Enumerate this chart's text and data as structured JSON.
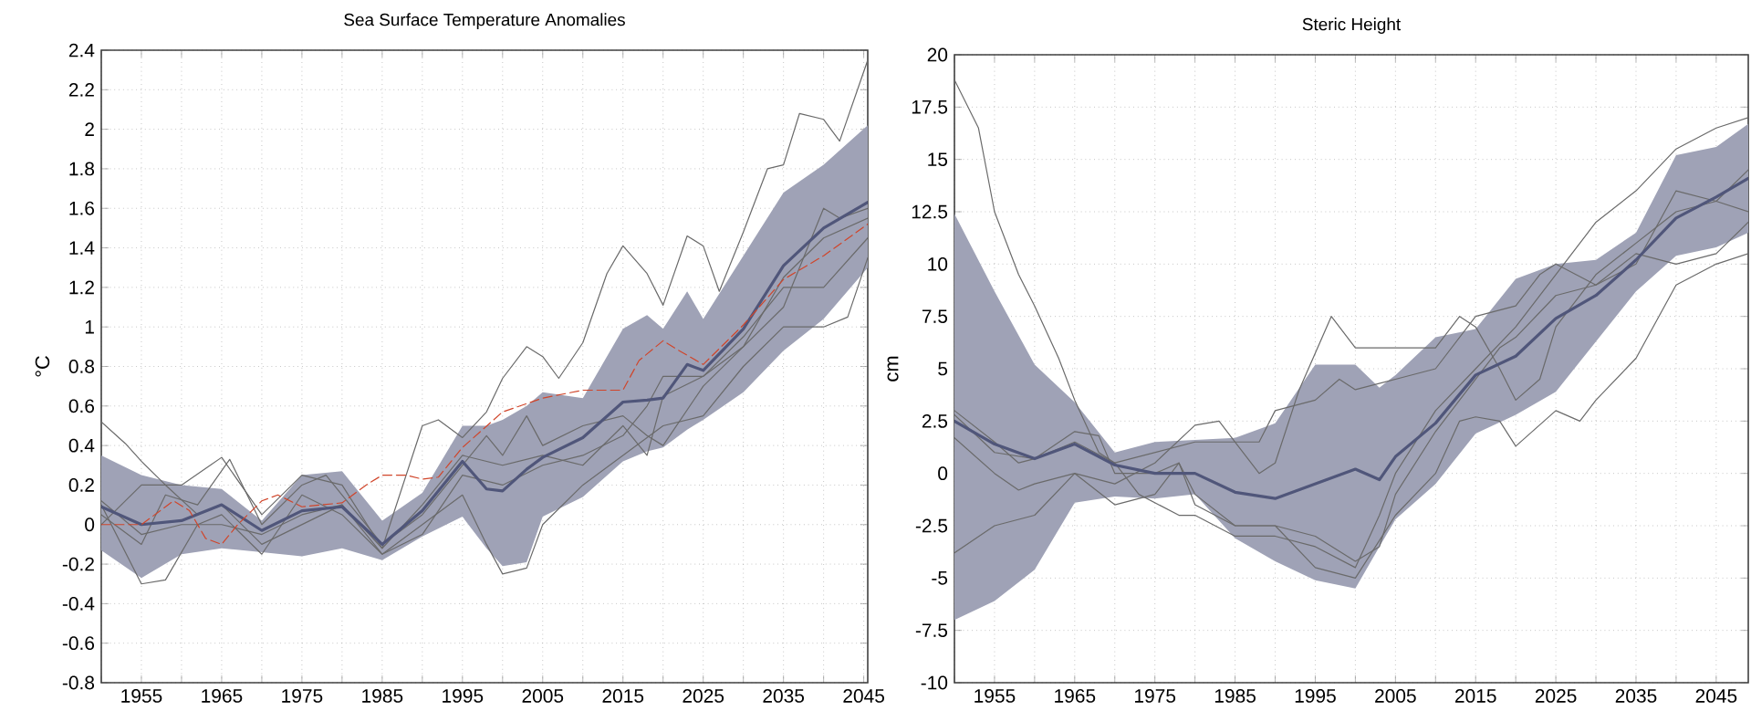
{
  "chart_data": [
    {
      "type": "line",
      "title": "Sea Surface Temperature Anomalies",
      "ylabel": "°C",
      "xlim": [
        1950,
        2045.5
      ],
      "ylim": [
        -0.8,
        2.4
      ],
      "xticks": [
        {
          "value": 1950,
          "label": null
        },
        1955,
        {
          "value": 1960,
          "label": null
        },
        1965,
        {
          "value": 1970,
          "label": null
        },
        1975,
        {
          "value": 1980,
          "label": null
        },
        1985,
        {
          "value": 1990,
          "label": null
        },
        1995,
        {
          "value": 2000,
          "label": null
        },
        2005,
        {
          "value": 2010,
          "label": null
        },
        2015,
        {
          "value": 2020,
          "label": null
        },
        2025,
        {
          "value": 2030,
          "label": null
        },
        2035,
        {
          "value": 2040,
          "label": null
        },
        2045
      ],
      "yticks": [
        -0.8,
        -0.6,
        -0.4,
        -0.2,
        0,
        0.2,
        0.4,
        0.6,
        0.8,
        1,
        1.2,
        1.4,
        1.6,
        1.8,
        2,
        2.2,
        2.4
      ],
      "grid": true,
      "series": [
        {
          "color": "#6a6a6a",
          "x": [
            1950,
            1953,
            1955,
            1958,
            1960,
            1965,
            1970,
            1975,
            1980,
            1985,
            1990,
            1992,
            1995,
            1998,
            2000,
            2003,
            2005,
            2007,
            2010,
            2013,
            2015,
            2018,
            2020,
            2023,
            2025,
            2027,
            2030,
            2033,
            2035,
            2037,
            2040,
            2042,
            2045.5
          ],
          "values": [
            0.52,
            0.41,
            0.32,
            0.2,
            0.2,
            0.34,
            0.05,
            0.25,
            0.2,
            -0.12,
            0.5,
            0.53,
            0.44,
            0.57,
            0.74,
            0.9,
            0.85,
            0.74,
            0.92,
            1.27,
            1.41,
            1.27,
            1.11,
            1.46,
            1.41,
            1.18,
            1.48,
            1.8,
            1.82,
            2.08,
            2.05,
            1.94,
            2.35
          ]
        },
        {
          "color": "#6a6a6a",
          "x": [
            1950,
            1955,
            1958,
            1962,
            1965,
            1970,
            1975,
            1980,
            1985,
            1990,
            1995,
            1998,
            2000,
            2003,
            2005,
            2010,
            2015,
            2020,
            2025,
            2030,
            2035,
            2040,
            2043,
            2045.5
          ],
          "values": [
            0.1,
            -0.3,
            -0.28,
            0.0,
            0.05,
            -0.15,
            0.15,
            0.05,
            -0.15,
            0.0,
            0.15,
            -0.1,
            -0.25,
            -0.22,
            0.0,
            0.2,
            0.35,
            0.5,
            0.55,
            0.8,
            1.0,
            1.0,
            1.05,
            1.35
          ]
        },
        {
          "color": "#6a6a6a",
          "x": [
            1950,
            1955,
            1958,
            1962,
            1966,
            1970,
            1975,
            1978,
            1980,
            1985,
            1990,
            1995,
            1998,
            2000,
            2003,
            2005,
            2010,
            2015,
            2018,
            2020,
            2025,
            2030,
            2035,
            2040,
            2045.5
          ],
          "values": [
            0.05,
            -0.1,
            0.15,
            0.1,
            0.33,
            0.0,
            0.2,
            0.25,
            0.15,
            -0.1,
            0.05,
            0.3,
            0.45,
            0.35,
            0.55,
            0.4,
            0.5,
            0.55,
            0.45,
            0.4,
            0.7,
            0.9,
            1.25,
            1.45,
            1.55
          ]
        },
        {
          "color": "#6a6a6a",
          "x": [
            1950,
            1955,
            1958,
            1962,
            1965,
            1970,
            1975,
            1980,
            1985,
            1990,
            1995,
            2000,
            2005,
            2010,
            2015,
            2018,
            2020,
            2025,
            2030,
            2035,
            2040,
            2045.5
          ],
          "values": [
            0.0,
            0.2,
            0.2,
            0.05,
            0.1,
            -0.1,
            0.0,
            0.1,
            -0.15,
            -0.05,
            0.25,
            0.2,
            0.3,
            0.35,
            0.45,
            0.6,
            0.75,
            0.75,
            0.95,
            1.2,
            1.2,
            1.45
          ]
        },
        {
          "color": "#6a6a6a",
          "x": [
            1950,
            1955,
            1960,
            1965,
            1970,
            1975,
            1980,
            1985,
            1990,
            1995,
            2000,
            2005,
            2010,
            2015,
            2018,
            2020,
            2025,
            2030,
            2035,
            2040,
            2042,
            2045.5
          ],
          "values": [
            0.12,
            -0.05,
            0.0,
            0.0,
            -0.05,
            0.05,
            0.1,
            -0.12,
            0.1,
            0.35,
            0.3,
            0.35,
            0.3,
            0.5,
            0.35,
            0.65,
            0.75,
            0.9,
            1.1,
            1.6,
            1.55,
            1.6
          ]
        },
        {
          "color": "#50567a",
          "x": [
            1950,
            1955,
            1960,
            1965,
            1970,
            1975,
            1980,
            1985,
            1990,
            1995,
            1998,
            2000,
            2003,
            2005,
            2010,
            2015,
            2018,
            2020,
            2023,
            2025,
            2030,
            2035,
            2040,
            2045.5
          ],
          "values": [
            0.09,
            0,
            0.02,
            0.1,
            -0.03,
            0.07,
            0.09,
            -0.1,
            0.07,
            0.32,
            0.18,
            0.17,
            0.28,
            0.34,
            0.44,
            0.62,
            0.63,
            0.64,
            0.81,
            0.78,
            0.99,
            1.31,
            1.5,
            1.63
          ],
          "upper": [
            0.35,
            0.25,
            0.2,
            0.18,
            0.02,
            0.25,
            0.27,
            0.02,
            0.16,
            0.5,
            0.5,
            0.53,
            0.6,
            0.67,
            0.64,
            0.99,
            1.06,
            0.99,
            1.18,
            1.04,
            1.36,
            1.68,
            1.82,
            2.02
          ],
          "lower": [
            -0.13,
            -0.27,
            -0.15,
            -0.12,
            -0.14,
            -0.16,
            -0.12,
            -0.18,
            -0.06,
            0.04,
            -0.12,
            -0.21,
            -0.19,
            0.04,
            0.14,
            0.32,
            0.37,
            0.39,
            0.48,
            0.53,
            0.67,
            0.88,
            1.04,
            1.3
          ]
        },
        {
          "color": "#d0452a",
          "line_style": "dashed",
          "x": [
            1950,
            1955,
            1959,
            1961,
            1963,
            1965,
            1967,
            1970,
            1972,
            1975,
            1980,
            1983,
            1985,
            1988,
            1990,
            1992,
            1995,
            2000,
            2005,
            2010,
            2015,
            2017,
            2020,
            2022,
            2025,
            2030,
            2035,
            2040,
            2045.5
          ],
          "values": [
            0,
            0,
            0.12,
            0.07,
            -0.07,
            -0.1,
            0,
            0.12,
            0.15,
            0.09,
            0.11,
            0.2,
            0.25,
            0.25,
            0.23,
            0.24,
            0.39,
            0.57,
            0.64,
            0.68,
            0.68,
            0.83,
            0.93,
            0.88,
            0.81,
            1.01,
            1.24,
            1.36,
            1.52
          ]
        }
      ]
    },
    {
      "type": "line",
      "title": "Steric Height",
      "ylabel": "cm",
      "xlim": [
        1950,
        2049
      ],
      "ylim": [
        -10,
        20
      ],
      "xticks": [
        {
          "value": 1950,
          "label": null
        },
        1955,
        {
          "value": 1960,
          "label": null
        },
        1965,
        {
          "value": 1970,
          "label": null
        },
        1975,
        {
          "value": 1980,
          "label": null
        },
        1985,
        {
          "value": 1990,
          "label": null
        },
        1995,
        {
          "value": 2000,
          "label": null
        },
        2005,
        {
          "value": 2010,
          "label": null
        },
        2015,
        {
          "value": 2020,
          "label": null
        },
        2025,
        {
          "value": 2030,
          "label": null
        },
        2035,
        {
          "value": 2040,
          "label": null
        },
        2045
      ],
      "yticks": [
        -10,
        -7.5,
        -5,
        -2.5,
        0,
        2.5,
        5,
        7.5,
        10,
        12.5,
        15,
        17.5,
        20
      ],
      "grid": true,
      "series": [
        {
          "color": "#6a6a6a",
          "x": [
            1950,
            1953,
            1955,
            1958,
            1960,
            1963,
            1965,
            1968,
            1970,
            1973,
            1978,
            1980,
            1985,
            1990,
            1995,
            2000,
            2003,
            2005,
            2010,
            2015,
            2020,
            2025,
            2030,
            2035,
            2040,
            2045,
            2049
          ],
          "values": [
            18.8,
            16.5,
            12.5,
            9.5,
            8.0,
            5.5,
            3.5,
            1.0,
            0.5,
            -1.0,
            -2.0,
            -2.0,
            -3.0,
            -3.0,
            -3.5,
            -4.5,
            -2.0,
            0.0,
            3.0,
            5.0,
            7.0,
            9.5,
            12.0,
            13.5,
            15.5,
            16.5,
            17.0
          ]
        },
        {
          "color": "#6a6a6a",
          "x": [
            1950,
            1955,
            1960,
            1965,
            1970,
            1975,
            1980,
            1983,
            1985,
            1988,
            1990,
            1993,
            1997,
            2000,
            2005,
            2010,
            2013,
            2015,
            2018,
            2020,
            2023,
            2025,
            2030,
            2035,
            2040,
            2045,
            2049
          ],
          "values": [
            -3.8,
            -2.5,
            -2.0,
            0.0,
            -0.5,
            0.5,
            2.3,
            2.5,
            1.5,
            0.0,
            0.5,
            4.0,
            7.5,
            6.0,
            6.0,
            6.0,
            7.5,
            7.0,
            5.0,
            3.5,
            4.5,
            7.0,
            9.5,
            11.0,
            12.5,
            13.0,
            14.5
          ]
        },
        {
          "color": "#6a6a6a",
          "x": [
            1950,
            1955,
            1958,
            1960,
            1965,
            1970,
            1975,
            1978,
            1980,
            1985,
            1990,
            1995,
            2000,
            2005,
            2010,
            2013,
            2015,
            2018,
            2020,
            2025,
            2028,
            2030,
            2035,
            2040,
            2045,
            2049
          ],
          "values": [
            1.7,
            0.0,
            -0.8,
            -0.5,
            0.0,
            -1.5,
            -1.0,
            0.5,
            -1.0,
            -2.5,
            -2.5,
            -4.5,
            -5.0,
            -2.0,
            0.0,
            2.5,
            2.7,
            2.5,
            1.3,
            3.0,
            2.5,
            3.5,
            5.5,
            9.0,
            10.0,
            10.5
          ]
        },
        {
          "color": "#6a6a6a",
          "x": [
            1950,
            1955,
            1958,
            1960,
            1965,
            1968,
            1970,
            1975,
            1978,
            1980,
            1985,
            1990,
            1995,
            2000,
            2003,
            2005,
            2010,
            2015,
            2018,
            2020,
            2025,
            2030,
            2035,
            2040,
            2045,
            2049
          ],
          "values": [
            3.0,
            1.5,
            0.5,
            0.7,
            2.0,
            1.8,
            0.0,
            0.0,
            0.5,
            -1.5,
            -2.5,
            -2.5,
            -3.0,
            -4.2,
            -3.5,
            -1.0,
            2.0,
            4.5,
            6.0,
            6.5,
            8.5,
            9.0,
            10.5,
            10.0,
            10.5,
            12.0
          ]
        },
        {
          "color": "#6a6a6a",
          "x": [
            1950,
            1955,
            1960,
            1965,
            1970,
            1975,
            1980,
            1985,
            1988,
            1990,
            1995,
            1998,
            2000,
            2005,
            2010,
            2015,
            2020,
            2023,
            2025,
            2030,
            2035,
            2040,
            2045,
            2049
          ],
          "values": [
            2.8,
            1.0,
            0.7,
            1.5,
            0.5,
            1.0,
            1.5,
            1.5,
            1.5,
            3.0,
            3.5,
            4.5,
            4.0,
            4.5,
            5.0,
            7.5,
            8.0,
            9.5,
            10.0,
            9.0,
            10.0,
            13.5,
            13.0,
            12.5
          ]
        },
        {
          "color": "#50567a",
          "x": [
            1950,
            1955,
            1960,
            1965,
            1970,
            1975,
            1980,
            1985,
            1990,
            1995,
            2000,
            2003,
            2005,
            2010,
            2015,
            2020,
            2025,
            2030,
            2035,
            2040,
            2045,
            2049
          ],
          "values": [
            2.5,
            1.4,
            0.7,
            1.4,
            0.4,
            0,
            0,
            -0.9,
            -1.2,
            -0.5,
            0.2,
            -0.3,
            0.8,
            2.4,
            4.7,
            5.6,
            7.4,
            8.5,
            10.2,
            12.2,
            13.2,
            14.1
          ],
          "upper": [
            12.4,
            8.7,
            5.2,
            3.4,
            1.0,
            1.5,
            1.6,
            1.7,
            2.4,
            5.2,
            5.2,
            4.1,
            4.7,
            6.5,
            6.9,
            9.3,
            10.0,
            10.2,
            11.5,
            15.2,
            15.6,
            16.7
          ],
          "lower": [
            -7.0,
            -6.1,
            -4.6,
            -1.4,
            -1.1,
            -1.2,
            -1.0,
            -3.1,
            -4.2,
            -5.1,
            -5.5,
            -3.5,
            -2.2,
            -0.5,
            1.9,
            2.8,
            3.9,
            6.3,
            8.7,
            10.4,
            10.8,
            11.5
          ]
        }
      ]
    }
  ]
}
